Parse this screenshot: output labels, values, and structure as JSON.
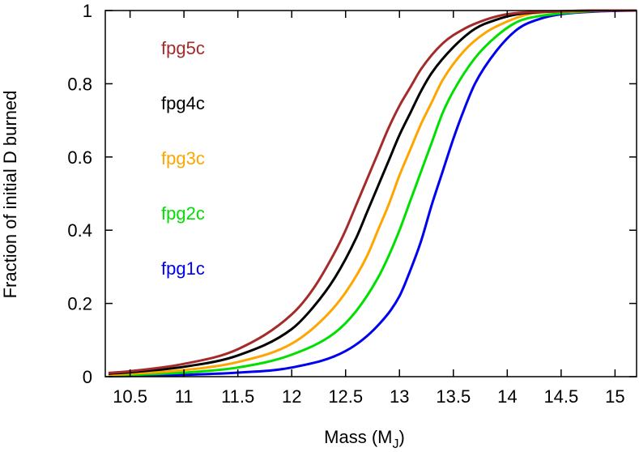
{
  "chart_data": {
    "type": "line",
    "xlabel": "Mass (M",
    "xlabel_sub": "J",
    "xlabel_close": ")",
    "ylabel": "Fraction of initial D burned",
    "xlim": [
      10.27,
      15.2
    ],
    "ylim": [
      0,
      1
    ],
    "xticks": [
      10.5,
      11,
      11.5,
      12,
      12.5,
      13,
      13.5,
      14,
      14.5,
      15
    ],
    "xtick_labels": [
      "10.5",
      "11",
      "11.5",
      "12",
      "12.5",
      "13",
      "13.5",
      "14",
      "14.5",
      "15"
    ],
    "yticks": [
      0,
      0.2,
      0.4,
      0.6,
      0.8,
      1
    ],
    "ytick_labels": [
      "0",
      "0.2",
      "0.4",
      "0.6",
      "0.8",
      "1"
    ],
    "grid": false,
    "legend_position": "top-left",
    "series": [
      {
        "name": "fpg5c",
        "color": "#a52a2a",
        "x": [
          10.3,
          10.5,
          11.0,
          11.5,
          12.0,
          12.2,
          12.4,
          12.5,
          12.6,
          12.7,
          12.8,
          12.9,
          13.0,
          13.1,
          13.2,
          13.4,
          13.6,
          13.8,
          14.0,
          14.5,
          15.0,
          15.2
        ],
        "y": [
          0.01,
          0.015,
          0.035,
          0.075,
          0.17,
          0.24,
          0.34,
          0.4,
          0.47,
          0.54,
          0.61,
          0.68,
          0.74,
          0.79,
          0.84,
          0.91,
          0.95,
          0.975,
          0.99,
          0.998,
          1.0,
          1.0
        ]
      },
      {
        "name": "fpg4c",
        "color": "#000000",
        "x": [
          10.3,
          10.5,
          11.0,
          11.5,
          12.0,
          12.2,
          12.4,
          12.6,
          12.7,
          12.8,
          12.9,
          13.0,
          13.1,
          13.2,
          13.3,
          13.5,
          13.7,
          13.9,
          14.1,
          14.5,
          15.0,
          15.2
        ],
        "y": [
          0.008,
          0.012,
          0.027,
          0.058,
          0.13,
          0.19,
          0.27,
          0.38,
          0.45,
          0.52,
          0.59,
          0.66,
          0.72,
          0.78,
          0.83,
          0.9,
          0.95,
          0.975,
          0.99,
          0.998,
          1.0,
          1.0
        ]
      },
      {
        "name": "fpg3c",
        "color": "#ffa500",
        "x": [
          10.3,
          10.5,
          11.0,
          11.5,
          12.0,
          12.3,
          12.5,
          12.7,
          12.8,
          12.9,
          13.0,
          13.1,
          13.2,
          13.3,
          13.4,
          13.6,
          13.8,
          14.0,
          14.2,
          14.6,
          15.0,
          15.2
        ],
        "y": [
          0.005,
          0.008,
          0.018,
          0.04,
          0.09,
          0.16,
          0.23,
          0.33,
          0.4,
          0.47,
          0.55,
          0.62,
          0.69,
          0.75,
          0.81,
          0.89,
          0.94,
          0.97,
          0.99,
          0.998,
          1.0,
          1.0
        ]
      },
      {
        "name": "fpg2c",
        "color": "#00e000",
        "x": [
          10.3,
          10.5,
          11.0,
          11.5,
          12.0,
          12.4,
          12.6,
          12.8,
          12.9,
          13.0,
          13.1,
          13.2,
          13.3,
          13.4,
          13.5,
          13.7,
          13.9,
          14.1,
          14.3,
          14.7,
          15.0,
          15.2
        ],
        "y": [
          0.003,
          0.005,
          0.011,
          0.025,
          0.06,
          0.12,
          0.18,
          0.27,
          0.33,
          0.4,
          0.48,
          0.56,
          0.64,
          0.72,
          0.78,
          0.87,
          0.93,
          0.97,
          0.985,
          0.997,
          1.0,
          1.0
        ]
      },
      {
        "name": "fpg1c",
        "color": "#0000ee",
        "x": [
          10.3,
          10.5,
          11.0,
          11.5,
          12.0,
          12.5,
          12.8,
          13.0,
          13.1,
          13.2,
          13.3,
          13.4,
          13.5,
          13.6,
          13.7,
          13.9,
          14.1,
          14.3,
          14.5,
          14.8,
          15.0,
          15.2
        ],
        "y": [
          0.001,
          0.002,
          0.005,
          0.011,
          0.025,
          0.07,
          0.14,
          0.22,
          0.29,
          0.37,
          0.47,
          0.56,
          0.65,
          0.73,
          0.8,
          0.89,
          0.95,
          0.977,
          0.99,
          0.997,
          0.999,
          1.0
        ]
      }
    ]
  }
}
